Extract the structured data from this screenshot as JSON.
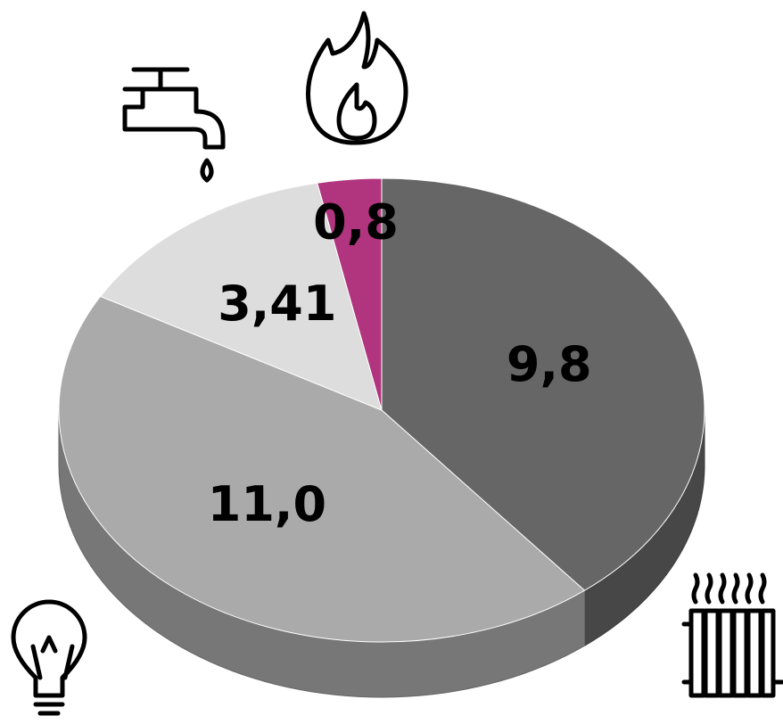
{
  "chart_data": {
    "type": "pie",
    "categories": [
      null,
      null,
      null,
      null
    ],
    "values": [
      9.8,
      11.0,
      3.41,
      0.8
    ],
    "value_labels": [
      "9,8",
      "11,0",
      "3,41",
      "0,8"
    ],
    "colors": [
      "#666666",
      "#aaaaaa",
      "#dddddd",
      "#b0357e"
    ]
  }
}
